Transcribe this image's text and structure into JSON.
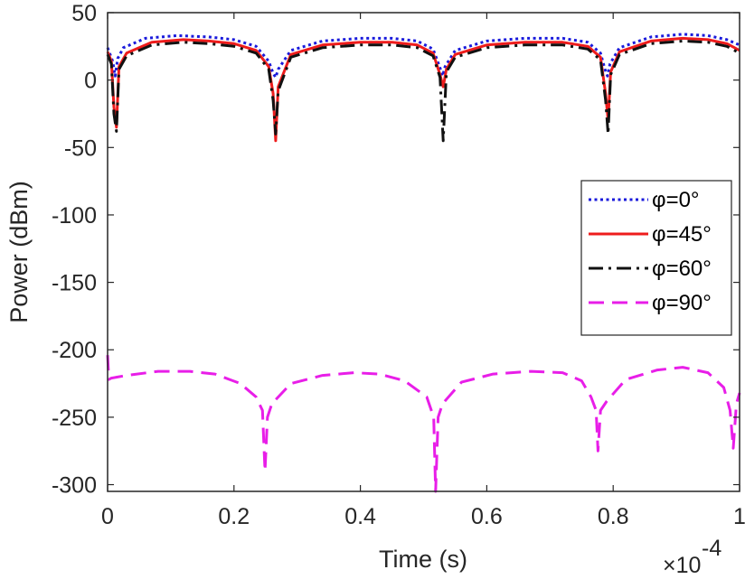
{
  "chart_data": {
    "type": "line",
    "title": "",
    "xlabel": "Time (s)",
    "ylabel": "Power (dBm)",
    "x_multiplier": "×10",
    "x_multiplier_exp": "-4",
    "xlim": [
      0,
      1
    ],
    "ylim": [
      -305,
      50
    ],
    "xticks": [
      0,
      0.2,
      0.4,
      0.6,
      0.8,
      1
    ],
    "xtick_labels": [
      "0",
      "0.2",
      "0.4",
      "0.6",
      "0.8",
      "1"
    ],
    "yticks": [
      50,
      0,
      -50,
      -100,
      -150,
      -200,
      -250,
      -300
    ],
    "ytick_labels": [
      "50",
      "0",
      "-50",
      "-100",
      "-150",
      "-200",
      "-250",
      "-300"
    ],
    "grid": false,
    "legend_position": "right",
    "series": [
      {
        "name": "φ=0°",
        "color": "#1a1adb",
        "style": "dotted",
        "x": [
          0,
          0.008,
          0.012,
          0.016,
          0.025,
          0.06,
          0.11,
          0.16,
          0.2,
          0.235,
          0.255,
          0.262,
          0.266,
          0.27,
          0.29,
          0.34,
          0.4,
          0.45,
          0.49,
          0.515,
          0.526,
          0.53,
          0.534,
          0.55,
          0.6,
          0.66,
          0.72,
          0.76,
          0.78,
          0.787,
          0.791,
          0.795,
          0.81,
          0.86,
          0.91,
          0.95,
          0.98,
          1.0
        ],
        "values": [
          24,
          14,
          3,
          16,
          24,
          31,
          33,
          32,
          30,
          25,
          14,
          5,
          2,
          8,
          22,
          29,
          31,
          31,
          29,
          23,
          9,
          3,
          10,
          22,
          29,
          31,
          31,
          28,
          20,
          8,
          3,
          12,
          24,
          32,
          34,
          33,
          30,
          26
        ]
      },
      {
        "name": "φ=45°",
        "color": "#ee1c1c",
        "style": "solid",
        "x": [
          0,
          0.006,
          0.01,
          0.014,
          0.018,
          0.03,
          0.07,
          0.12,
          0.16,
          0.2,
          0.235,
          0.255,
          0.262,
          0.266,
          0.27,
          0.29,
          0.34,
          0.4,
          0.45,
          0.49,
          0.515,
          0.526,
          0.531,
          0.536,
          0.55,
          0.6,
          0.66,
          0.72,
          0.76,
          0.78,
          0.788,
          0.792,
          0.796,
          0.81,
          0.86,
          0.91,
          0.95,
          0.98,
          1.0
        ],
        "values": [
          21,
          14,
          -20,
          -35,
          10,
          20,
          28,
          30,
          29,
          27,
          22,
          10,
          -10,
          -45,
          -5,
          19,
          26,
          28,
          28,
          26,
          20,
          4,
          -5,
          8,
          19,
          26,
          28,
          28,
          25,
          17,
          -10,
          -30,
          6,
          21,
          29,
          31,
          30,
          27,
          22
        ]
      },
      {
        "name": "φ=60°",
        "color": "#111111",
        "style": "dashdot",
        "x": [
          0,
          0.006,
          0.01,
          0.014,
          0.018,
          0.03,
          0.07,
          0.12,
          0.16,
          0.2,
          0.235,
          0.255,
          0.262,
          0.266,
          0.27,
          0.29,
          0.34,
          0.4,
          0.45,
          0.49,
          0.515,
          0.526,
          0.531,
          0.536,
          0.55,
          0.6,
          0.66,
          0.72,
          0.76,
          0.78,
          0.788,
          0.792,
          0.796,
          0.81,
          0.86,
          0.91,
          0.95,
          0.98,
          1.0
        ],
        "values": [
          19,
          12,
          -25,
          -38,
          8,
          18,
          26,
          28,
          27,
          25,
          20,
          8,
          -15,
          -40,
          -8,
          17,
          24,
          26,
          26,
          24,
          18,
          2,
          -45,
          6,
          17,
          24,
          26,
          26,
          23,
          15,
          -15,
          -40,
          4,
          19,
          27,
          29,
          28,
          25,
          20
        ]
      },
      {
        "name": "φ=90°",
        "color": "#e81ee8",
        "style": "dashed",
        "x": [
          0,
          0.002,
          0.006,
          0.03,
          0.08,
          0.13,
          0.17,
          0.21,
          0.235,
          0.245,
          0.249,
          0.253,
          0.26,
          0.29,
          0.34,
          0.39,
          0.43,
          0.47,
          0.505,
          0.516,
          0.519,
          0.523,
          0.53,
          0.56,
          0.61,
          0.67,
          0.72,
          0.75,
          0.765,
          0.773,
          0.776,
          0.78,
          0.79,
          0.82,
          0.87,
          0.91,
          0.95,
          0.975,
          0.985,
          0.99,
          0.995,
          1.0
        ],
        "values": [
          -204,
          -222,
          -221,
          -219,
          -216,
          -216,
          -218,
          -225,
          -235,
          -245,
          -290,
          -250,
          -240,
          -225,
          -219,
          -217,
          -218,
          -223,
          -235,
          -250,
          -305,
          -250,
          -240,
          -224,
          -218,
          -216,
          -217,
          -223,
          -235,
          -245,
          -275,
          -245,
          -238,
          -222,
          -215,
          -213,
          -217,
          -228,
          -245,
          -273,
          -240,
          -232
        ]
      }
    ]
  }
}
